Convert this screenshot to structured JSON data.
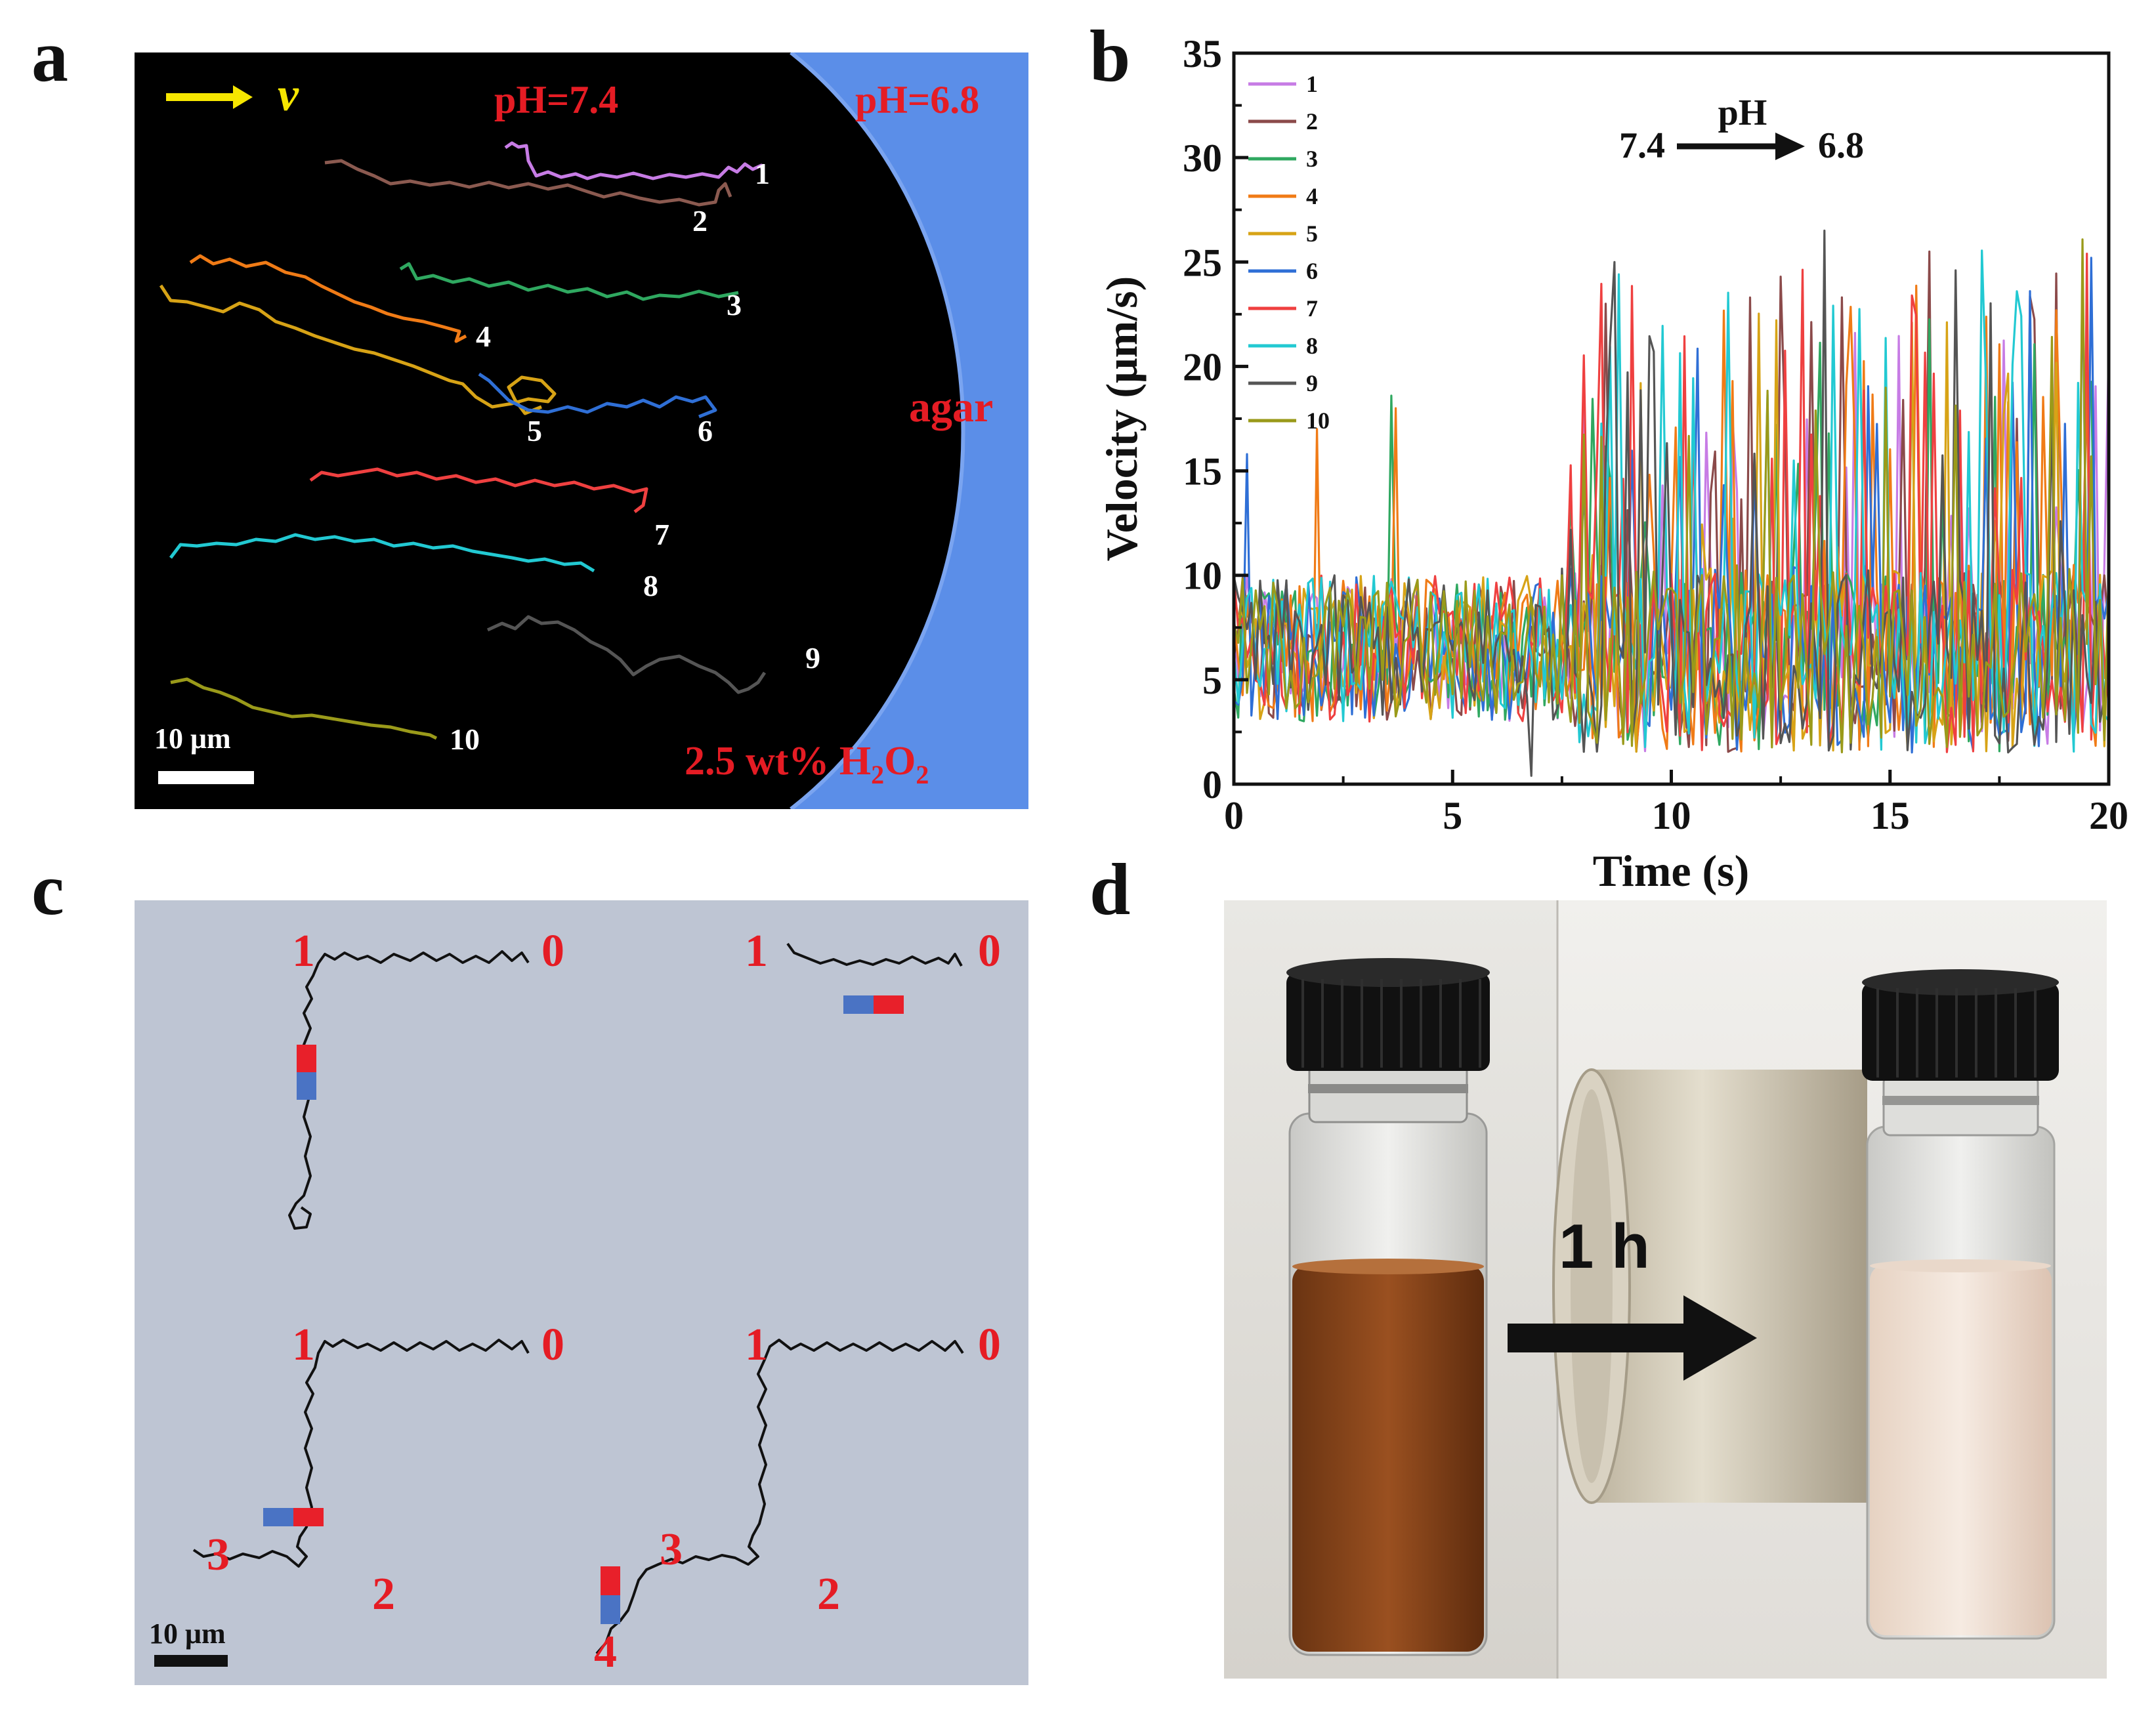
{
  "panel_labels": {
    "a": "a",
    "b": "b",
    "c": "c",
    "d": "d"
  },
  "panel_a": {
    "velocity_symbol": "v",
    "ph_left": "pH=7.4",
    "ph_right": "pH=6.8",
    "agar_label": "agar",
    "scale_bar": "10 μm",
    "h2o2_prefix": "2.5 wt% H",
    "h2o2_sub1": "2",
    "h2o2_mid": "O",
    "h2o2_sub2": "2",
    "track_labels": [
      "1",
      "2",
      "3",
      "4",
      "5",
      "6",
      "7",
      "8",
      "9",
      "10"
    ],
    "colors": {
      "background": "#000000",
      "agar": "#5b8ee8",
      "red_text": "#e51c24",
      "arrow": "#f6e600"
    }
  },
  "panel_b_text": {
    "annotation_pH": "pH",
    "annotation_from": "7.4",
    "annotation_to": "6.8"
  },
  "chart_data": {
    "type": "line",
    "xlabel": "Time (s)",
    "ylabel": "Velocity (μm/s)",
    "xlim": [
      0,
      20
    ],
    "ylim": [
      0,
      35
    ],
    "xticks": [
      0,
      5,
      10,
      15,
      20
    ],
    "yticks": [
      0,
      5,
      10,
      15,
      20,
      25,
      30,
      35
    ],
    "legend_position": "top-left",
    "series": [
      {
        "name": "1",
        "color": "#c77ce5"
      },
      {
        "name": "2",
        "color": "#8b4a4a"
      },
      {
        "name": "3",
        "color": "#2fa860"
      },
      {
        "name": "4",
        "color": "#f07b16"
      },
      {
        "name": "5",
        "color": "#d7a316"
      },
      {
        "name": "6",
        "color": "#2f6fd6"
      },
      {
        "name": "7",
        "color": "#ef4040"
      },
      {
        "name": "8",
        "color": "#22c9d2"
      },
      {
        "name": "9",
        "color": "#555555"
      },
      {
        "name": "10",
        "color": "#9a9a1a"
      }
    ],
    "spike_points": [
      {
        "series": "9",
        "x": 8.7,
        "y": 25
      },
      {
        "series": "2",
        "x": 8.5,
        "y": 23
      },
      {
        "series": "9",
        "x": 13.5,
        "y": 26.5
      },
      {
        "series": "2",
        "x": 12.5,
        "y": 24.3
      },
      {
        "series": "2",
        "x": 11.8,
        "y": 23.3
      },
      {
        "series": "7",
        "x": 15.5,
        "y": 23.4
      },
      {
        "series": "8",
        "x": 17.9,
        "y": 23.6
      },
      {
        "series": "9",
        "x": 16.5,
        "y": 24.6
      },
      {
        "series": "7",
        "x": 19.5,
        "y": 25.4
      },
      {
        "series": "6",
        "x": 19.6,
        "y": 25.2
      },
      {
        "series": "4",
        "x": 3.7,
        "y": 18
      },
      {
        "series": "3",
        "x": 3.6,
        "y": 18.6
      },
      {
        "series": "5",
        "x": 9.3,
        "y": 19.2
      },
      {
        "series": "4",
        "x": 14.0,
        "y": 19.1
      },
      {
        "series": "9",
        "x": 6.8,
        "y": 0.1
      },
      {
        "series": "6",
        "x": 0.3,
        "y": 15.8
      },
      {
        "series": "4",
        "x": 1.9,
        "y": 17
      }
    ]
  },
  "panel_c": {
    "scale_bar": "10 μm",
    "quad1": {
      "start": "0",
      "turn": "1"
    },
    "quad2": {
      "start": "0",
      "turn": "1"
    },
    "quad3": {
      "start": "0",
      "p1": "1",
      "p2": "2",
      "p3": "3"
    },
    "quad4": {
      "start": "0",
      "p1": "1",
      "p2": "2",
      "p3": "3",
      "p4": "4"
    },
    "colors": {
      "background": "#bec5d3",
      "magnet_red": "#e8202a",
      "magnet_blue": "#4a73c4",
      "label_red": "#e51c24"
    }
  },
  "panel_d": {
    "time_label": "1 h"
  }
}
